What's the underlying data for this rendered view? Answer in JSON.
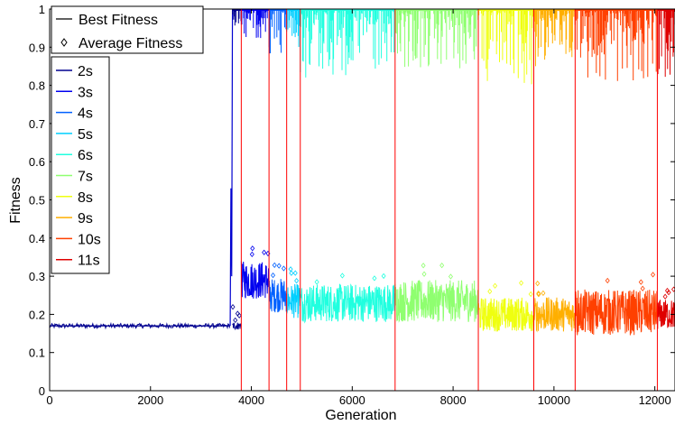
{
  "chart_data": {
    "type": "line",
    "xlabel": "Generation",
    "ylabel": "Fitness",
    "xlim": [
      0,
      12400
    ],
    "ylim": [
      0,
      1
    ],
    "x_ticks": [
      0,
      2000,
      4000,
      6000,
      8000,
      10000,
      12000
    ],
    "y_ticks": [
      0,
      0.1,
      0.2,
      0.3,
      0.4,
      0.5,
      0.6,
      0.7,
      0.8,
      0.9,
      1
    ],
    "grid": false,
    "legend_top": {
      "placement": "top-left",
      "entries": [
        {
          "label": "Best Fitness",
          "marker": "line"
        },
        {
          "label": "Average Fitness",
          "marker": "diamond"
        }
      ]
    },
    "legend_time": {
      "placement": "left",
      "entries": [
        {
          "label": "2s",
          "color": "#00008f"
        },
        {
          "label": "3s",
          "color": "#0000ef"
        },
        {
          "label": "4s",
          "color": "#0060ff"
        },
        {
          "label": "5s",
          "color": "#00cfff"
        },
        {
          "label": "6s",
          "color": "#20ffdf"
        },
        {
          "label": "7s",
          "color": "#8fff70"
        },
        {
          "label": "8s",
          "color": "#efff10"
        },
        {
          "label": "9s",
          "color": "#ffaf00"
        },
        {
          "label": "10s",
          "color": "#ff4000"
        },
        {
          "label": "11s",
          "color": "#df0000"
        }
      ]
    },
    "phases": [
      {
        "label": "2s",
        "start": 0,
        "end": 3800,
        "best_min": 0.95,
        "avg_center": 0.17,
        "avg_spread": 0.01
      },
      {
        "label": "3s",
        "start": 3800,
        "end": 4350,
        "best_min": 0.92,
        "avg_center": 0.29,
        "avg_spread": 0.05
      },
      {
        "label": "4s",
        "start": 4350,
        "end": 4700,
        "best_min": 0.87,
        "avg_center": 0.25,
        "avg_spread": 0.045
      },
      {
        "label": "5s",
        "start": 4700,
        "end": 4970,
        "best_min": 0.9,
        "avg_center": 0.235,
        "avg_spread": 0.045
      },
      {
        "label": "6s",
        "start": 4970,
        "end": 6850,
        "best_min": 0.81,
        "avg_center": 0.23,
        "avg_spread": 0.05
      },
      {
        "label": "7s",
        "start": 6850,
        "end": 8500,
        "best_min": 0.83,
        "avg_center": 0.235,
        "avg_spread": 0.055
      },
      {
        "label": "8s",
        "start": 8500,
        "end": 9600,
        "best_min": 0.8,
        "avg_center": 0.2,
        "avg_spread": 0.045
      },
      {
        "label": "9s",
        "start": 9600,
        "end": 10420,
        "best_min": 0.84,
        "avg_center": 0.2,
        "avg_spread": 0.045
      },
      {
        "label": "10s",
        "start": 10420,
        "end": 12050,
        "best_min": 0.81,
        "avg_center": 0.205,
        "avg_spread": 0.06
      },
      {
        "label": "11s",
        "start": 12050,
        "end": 12400,
        "best_min": 0.82,
        "avg_center": 0.2,
        "avg_spread": 0.04
      }
    ],
    "early_phase": {
      "best_value": 0.17,
      "jump_generation": 3580,
      "jump_peak": 0.53
    },
    "phase_boundaries": [
      0,
      3800,
      4350,
      4700,
      4970,
      6850,
      8500,
      9600,
      10420,
      12050,
      12400
    ],
    "boundary_color": "#ff0000"
  }
}
